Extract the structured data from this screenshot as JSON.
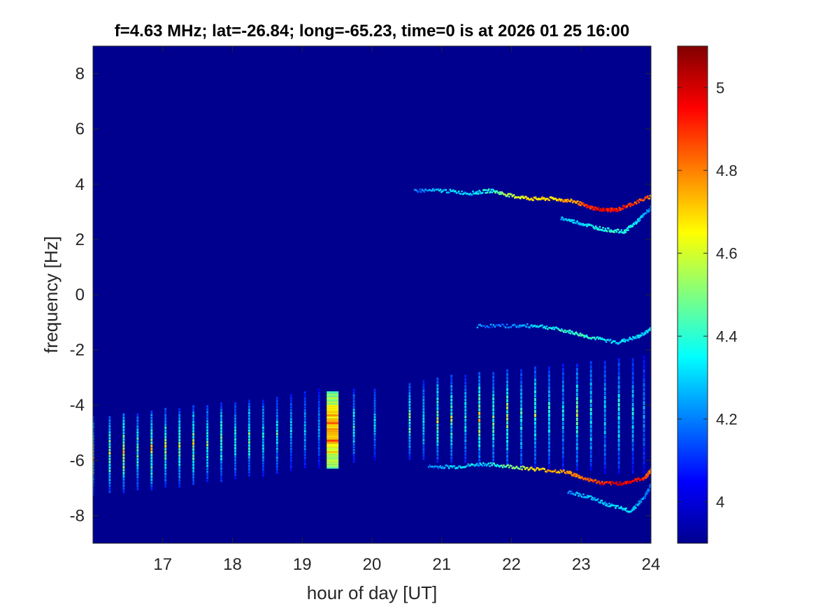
{
  "chart_data": {
    "type": "heatmap",
    "title": "f=4.63 MHz;  lat=-26.84; long=-65.23, time=0 is at 2026 01 25 16:00",
    "xlabel": "hour of day [UT]",
    "ylabel": "frequency [Hz]",
    "xlim": [
      16,
      24
    ],
    "ylim": [
      -9,
      9
    ],
    "x_ticks": [
      17,
      18,
      19,
      20,
      21,
      22,
      23,
      24
    ],
    "y_ticks": [
      -8,
      -6,
      -4,
      -2,
      0,
      2,
      4,
      6,
      8
    ],
    "colorbar": {
      "colormap": "jet",
      "range": [
        3.9,
        5.1
      ],
      "ticks": [
        4,
        4.2,
        4.4,
        4.6,
        4.8,
        5
      ]
    },
    "background_color": "#00008f",
    "grid": false,
    "legend": "none",
    "features": {
      "vertical_streaks": {
        "description_hours": [
          16.0,
          16.24,
          16.44,
          16.64,
          16.84,
          17.04,
          17.24,
          17.44,
          17.64,
          17.84,
          18.04,
          18.24,
          18.44,
          18.64,
          18.84,
          19.04,
          19.24,
          19.74,
          20.04,
          20.54,
          20.74,
          20.94,
          21.14,
          21.34,
          21.54,
          21.74,
          21.94,
          22.14,
          22.34,
          22.54,
          22.74,
          22.94,
          23.14,
          23.34,
          23.54,
          23.74,
          23.9
        ],
        "freq_low": [
          -7.3,
          -7.2,
          -7.2,
          -7.1,
          -7.1,
          -7.0,
          -7.0,
          -6.9,
          -6.8,
          -6.8,
          -6.7,
          -6.6,
          -6.6,
          -6.5,
          -6.4,
          -6.3,
          -6.3,
          -6.1,
          -6.0,
          -6.0,
          -6.0,
          -6.1,
          -6.1,
          -6.1,
          -6.2,
          -6.2,
          -6.2,
          -6.3,
          -6.3,
          -6.3,
          -6.4,
          -6.4,
          -6.4,
          -6.5,
          -6.5,
          -6.5,
          -6.5
        ],
        "freq_high": [
          -4.4,
          -4.4,
          -4.3,
          -4.3,
          -4.2,
          -4.1,
          -4.1,
          -4.0,
          -4.0,
          -3.9,
          -3.9,
          -3.8,
          -3.8,
          -3.7,
          -3.6,
          -3.5,
          -3.4,
          -3.4,
          -3.4,
          -3.2,
          -3.1,
          -3.0,
          -2.9,
          -2.9,
          -2.8,
          -2.8,
          -2.7,
          -2.7,
          -2.6,
          -2.6,
          -2.5,
          -2.5,
          -2.4,
          -2.4,
          -2.3,
          -2.3,
          -2.2
        ],
        "peak_value": [
          4.8,
          4.7,
          4.8,
          4.6,
          4.8,
          4.7,
          4.6,
          4.7,
          4.6,
          4.6,
          4.5,
          4.6,
          4.5,
          4.5,
          4.4,
          4.4,
          4.3,
          4.5,
          4.4,
          4.6,
          4.5,
          4.7,
          4.6,
          4.5,
          4.8,
          4.6,
          4.7,
          4.5,
          4.6,
          4.5,
          4.4,
          4.6,
          4.5,
          4.4,
          4.5,
          4.4,
          4.3
        ]
      },
      "bright_block": {
        "x_range": [
          19.35,
          19.52
        ],
        "freq_range": [
          -6.3,
          -3.5
        ],
        "value_max": 5.0
      },
      "upper_trace": {
        "x": [
          20.6,
          21.0,
          21.4,
          21.7,
          22.0,
          22.3,
          22.6,
          22.9,
          23.1,
          23.3,
          23.5,
          23.7,
          24.0
        ],
        "y": [
          3.8,
          3.8,
          3.7,
          3.8,
          3.6,
          3.5,
          3.5,
          3.4,
          3.2,
          3.1,
          3.1,
          3.3,
          3.6
        ],
        "value": [
          4.2,
          4.3,
          4.3,
          4.4,
          4.6,
          4.7,
          4.7,
          4.8,
          4.9,
          5.0,
          4.9,
          4.9,
          4.8
        ]
      },
      "upper_lower_trace": {
        "x": [
          22.7,
          23.0,
          23.3,
          23.6,
          23.8,
          24.0
        ],
        "y": [
          2.8,
          2.6,
          2.4,
          2.3,
          2.7,
          3.2
        ],
        "value": [
          4.3,
          4.3,
          4.4,
          4.4,
          4.3,
          4.2
        ]
      },
      "middle_trace": {
        "x": [
          21.5,
          22.0,
          22.4,
          22.8,
          23.1,
          23.5,
          23.8,
          24.0
        ],
        "y": [
          -1.1,
          -1.1,
          -1.1,
          -1.3,
          -1.5,
          -1.7,
          -1.5,
          -1.2
        ],
        "value": [
          4.2,
          4.2,
          4.3,
          4.4,
          4.4,
          4.3,
          4.3,
          4.3
        ]
      },
      "lower_trace": {
        "x": [
          20.8,
          21.2,
          21.6,
          22.0,
          22.4,
          22.8,
          23.0,
          23.3,
          23.6,
          23.9,
          24.0
        ],
        "y": [
          -6.2,
          -6.2,
          -6.1,
          -6.2,
          -6.3,
          -6.4,
          -6.6,
          -6.8,
          -6.8,
          -6.6,
          -6.3
        ],
        "value": [
          4.2,
          4.3,
          4.3,
          4.5,
          4.7,
          4.8,
          4.8,
          4.9,
          5.0,
          4.9,
          4.8
        ]
      },
      "lower_lower_trace": {
        "x": [
          22.8,
          23.1,
          23.4,
          23.7,
          23.9,
          24.0
        ],
        "y": [
          -7.1,
          -7.3,
          -7.6,
          -7.8,
          -7.3,
          -6.8
        ],
        "value": [
          4.2,
          4.3,
          4.3,
          4.3,
          4.2,
          4.2
        ]
      }
    }
  }
}
